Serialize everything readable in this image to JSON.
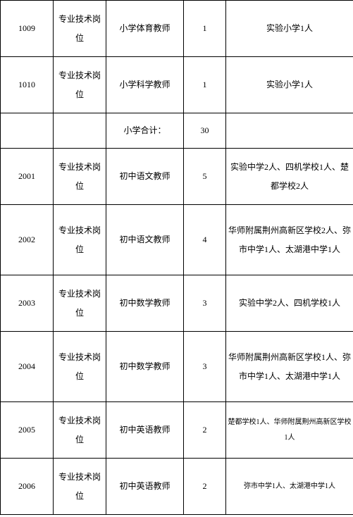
{
  "rows": [
    {
      "height": "med",
      "cells": [
        {
          "v": "1009"
        },
        {
          "v": "专业技术岗位"
        },
        {
          "v": "小学体育教师"
        },
        {
          "v": "1"
        },
        {
          "v": "实验小学1人"
        }
      ]
    },
    {
      "height": "med",
      "cells": [
        {
          "v": "1010"
        },
        {
          "v": "专业技术岗位"
        },
        {
          "v": "小学科学教师"
        },
        {
          "v": "1"
        },
        {
          "v": "实验小学1人"
        }
      ]
    },
    {
      "height": "short",
      "cells": [
        {
          "v": ""
        },
        {
          "v": ""
        },
        {
          "v": "小学合计："
        },
        {
          "v": "30"
        },
        {
          "v": ""
        }
      ]
    },
    {
      "height": "med",
      "cells": [
        {
          "v": "2001"
        },
        {
          "v": "专业技术岗位"
        },
        {
          "v": "初中语文教师"
        },
        {
          "v": "5"
        },
        {
          "v": "实验中学2人、四机学校1人、楚都学校2人"
        }
      ]
    },
    {
      "height": "tall",
      "cells": [
        {
          "v": "2002"
        },
        {
          "v": "专业技术岗位"
        },
        {
          "v": "初中语文教师"
        },
        {
          "v": "4"
        },
        {
          "v": "华师附属荆州高新区学校2人、弥市中学1人、太湖港中学1人"
        }
      ]
    },
    {
      "height": "med",
      "cells": [
        {
          "v": "2003"
        },
        {
          "v": "专业技术岗位"
        },
        {
          "v": "初中数学教师"
        },
        {
          "v": "3"
        },
        {
          "v": "实验中学2人、四机学校1人"
        }
      ]
    },
    {
      "height": "tall",
      "cells": [
        {
          "v": "2004"
        },
        {
          "v": "专业技术岗位"
        },
        {
          "v": "初中数学教师"
        },
        {
          "v": "3"
        },
        {
          "v": "华师附属荆州高新区学校1人、弥市中学1人、太湖港中学1人"
        }
      ]
    },
    {
      "height": "med",
      "cells": [
        {
          "v": "2005"
        },
        {
          "v": "专业技术岗位"
        },
        {
          "v": "初中英语教师"
        },
        {
          "v": "2"
        },
        {
          "v": "楚都学校1人、华师附属荆州高新区学校1人",
          "small": true
        }
      ]
    },
    {
      "height": "med",
      "cells": [
        {
          "v": "2006"
        },
        {
          "v": "专业技术岗位"
        },
        {
          "v": "初中英语教师"
        },
        {
          "v": "2"
        },
        {
          "v": "弥市中学1人、太湖港中学1人",
          "small": true
        }
      ]
    }
  ]
}
